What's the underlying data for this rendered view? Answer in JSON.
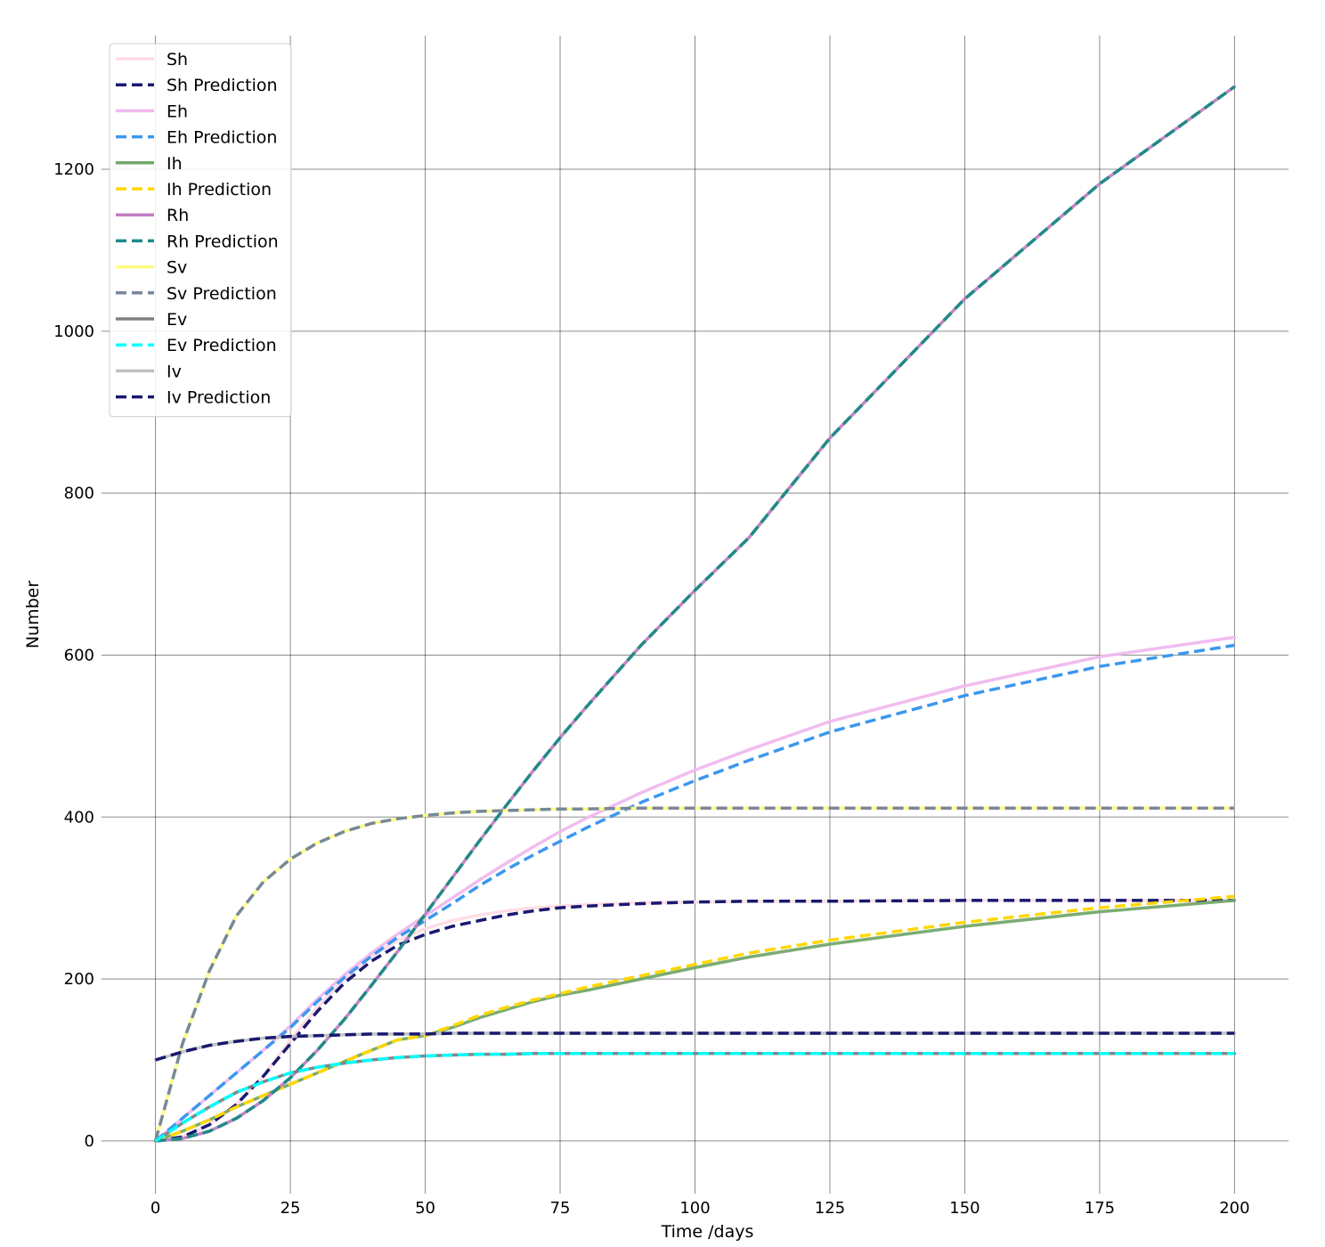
{
  "chart_data": {
    "type": "line",
    "title": "",
    "xlabel": "Time /days",
    "ylabel": "Number",
    "xlim": [
      -10,
      210
    ],
    "ylim": [
      -65,
      1365
    ],
    "xticks": [
      0,
      25,
      50,
      75,
      100,
      125,
      150,
      175,
      200
    ],
    "yticks": [
      0,
      200,
      400,
      600,
      800,
      1000,
      1200
    ],
    "grid": true,
    "legend_position": "top-left",
    "x": [
      0,
      5,
      10,
      15,
      20,
      25,
      30,
      35,
      40,
      45,
      50,
      55,
      60,
      65,
      70,
      75,
      80,
      90,
      100,
      110,
      125,
      150,
      175,
      200
    ],
    "series": [
      {
        "name": "Sh",
        "color": "#ffdbe5",
        "dashed": false,
        "values": [
          0,
          5,
          20,
          45,
          80,
          125,
          165,
          200,
          228,
          248,
          262,
          272,
          279,
          284,
          288,
          290,
          292,
          294,
          295,
          296,
          296,
          297,
          297,
          297
        ]
      },
      {
        "name": "Sh Prediction",
        "color": "#191970",
        "dashed": true,
        "values": [
          0,
          5,
          20,
          45,
          80,
          120,
          160,
          195,
          222,
          242,
          255,
          265,
          272,
          279,
          284,
          288,
          290,
          293,
          295,
          296,
          296,
          297,
          297,
          297
        ]
      },
      {
        "name": "Eh",
        "color": "#f0b8ef",
        "dashed": false,
        "values": [
          0,
          28,
          56,
          84,
          112,
          142,
          175,
          205,
          232,
          256,
          278,
          300,
          322,
          343,
          363,
          382,
          399,
          430,
          458,
          483,
          518,
          562,
          598,
          622
        ]
      },
      {
        "name": "Eh Prediction",
        "color": "#3c97ee",
        "dashed": true,
        "values": [
          0,
          28,
          56,
          84,
          112,
          140,
          172,
          202,
          228,
          252,
          272,
          293,
          315,
          335,
          353,
          370,
          387,
          418,
          445,
          470,
          505,
          550,
          586,
          612
        ]
      },
      {
        "name": "Ih",
        "color": "#74a86c",
        "dashed": false,
        "values": [
          0,
          12,
          26,
          42,
          56,
          70,
          84,
          98,
          112,
          125,
          130,
          140,
          152,
          162,
          172,
          180,
          186,
          200,
          214,
          227,
          243,
          265,
          283,
          297
        ]
      },
      {
        "name": "Ih Prediction",
        "color": "#ffd700",
        "dashed": true,
        "values": [
          0,
          12,
          26,
          42,
          56,
          70,
          84,
          98,
          112,
          125,
          130,
          142,
          155,
          165,
          174,
          182,
          190,
          204,
          218,
          232,
          248,
          270,
          288,
          302
        ]
      },
      {
        "name": "Rh",
        "color": "#c17ec1",
        "dashed": false,
        "values": [
          0,
          3,
          12,
          28,
          50,
          78,
          112,
          150,
          192,
          235,
          280,
          325,
          370,
          414,
          457,
          498,
          537,
          612,
          680,
          745,
          868,
          1040,
          1182,
          1302
        ]
      },
      {
        "name": "Rh Prediction",
        "color": "#1f8a87",
        "dashed": true,
        "values": [
          0,
          3,
          12,
          28,
          50,
          78,
          112,
          150,
          192,
          235,
          280,
          325,
          370,
          414,
          457,
          498,
          537,
          612,
          680,
          745,
          868,
          1040,
          1182,
          1302
        ]
      },
      {
        "name": "Sv",
        "color": "#fdfd80",
        "dashed": false,
        "values": [
          0,
          120,
          210,
          278,
          320,
          348,
          368,
          382,
          392,
          398,
          402,
          405,
          407,
          408,
          409,
          410,
          410,
          411,
          411,
          411,
          411,
          411,
          411,
          411
        ]
      },
      {
        "name": "Sv Prediction",
        "color": "#778899",
        "dashed": true,
        "values": [
          0,
          120,
          210,
          278,
          320,
          348,
          368,
          382,
          392,
          398,
          402,
          405,
          407,
          408,
          409,
          410,
          410,
          411,
          411,
          411,
          411,
          411,
          411,
          411
        ]
      },
      {
        "name": "Ev",
        "color": "#808080",
        "dashed": false,
        "values": [
          0,
          22,
          42,
          60,
          73,
          84,
          91,
          96,
          100,
          103,
          105,
          106,
          107,
          107,
          108,
          108,
          108,
          108,
          108,
          108,
          108,
          108,
          108,
          108
        ]
      },
      {
        "name": "Ev Prediction",
        "color": "#00ffff",
        "dashed": true,
        "values": [
          0,
          22,
          42,
          60,
          73,
          84,
          91,
          96,
          100,
          103,
          105,
          106,
          107,
          107,
          108,
          108,
          108,
          108,
          108,
          108,
          108,
          108,
          108,
          108
        ]
      },
      {
        "name": "Iv",
        "color": "#c0c0c0",
        "dashed": false,
        "values": [
          100,
          110,
          118,
          123,
          127,
          129,
          130,
          131,
          132,
          132,
          132,
          133,
          133,
          133,
          133,
          133,
          133,
          133,
          133,
          133,
          133,
          133,
          133,
          133
        ]
      },
      {
        "name": "Iv Prediction",
        "color": "#191970",
        "dashed": true,
        "values": [
          100,
          110,
          118,
          123,
          127,
          129,
          130,
          131,
          132,
          132,
          132,
          133,
          133,
          133,
          133,
          133,
          133,
          133,
          133,
          133,
          133,
          133,
          133,
          133
        ]
      }
    ]
  }
}
